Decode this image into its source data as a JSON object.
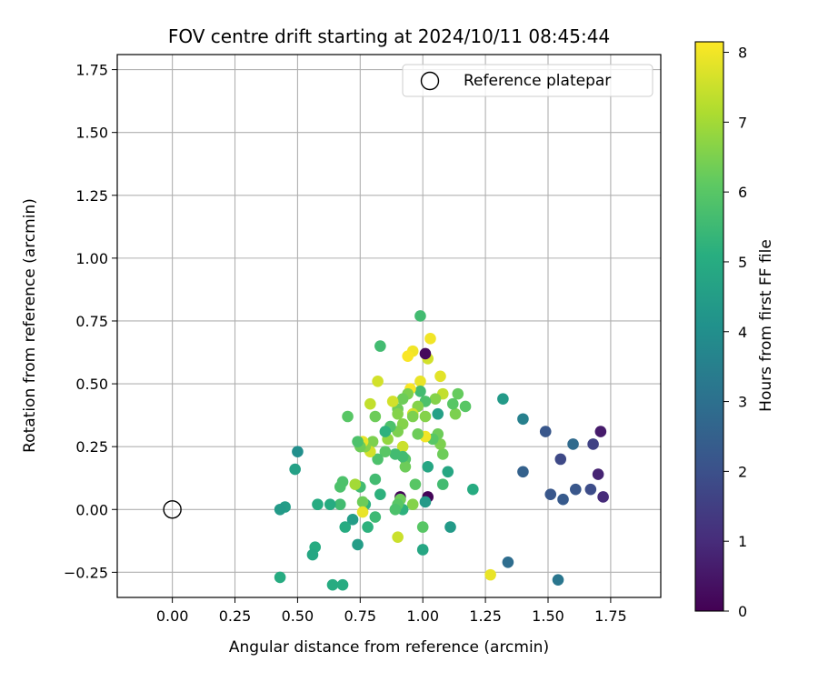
{
  "chart_data": {
    "type": "scatter",
    "title": "FOV centre drift starting at 2024/10/11 08:45:44",
    "xlabel": "Angular distance from reference (arcmin)",
    "ylabel": "Rotation from reference (arcmin)",
    "xlim": [
      -0.22,
      1.95
    ],
    "ylim": [
      -0.35,
      1.81
    ],
    "xticks": [
      "0.00",
      "0.25",
      "0.50",
      "0.75",
      "1.00",
      "1.25",
      "1.50",
      "1.75"
    ],
    "yticks": [
      "−0.25",
      "0.00",
      "0.25",
      "0.50",
      "0.75",
      "1.00",
      "1.25",
      "1.50",
      "1.75"
    ],
    "grid": true,
    "legend": {
      "position": "top-right",
      "entries": [
        "Reference platepar"
      ]
    },
    "colormap": "viridis",
    "colorbar": {
      "label": "Hours from first FF file",
      "range": [
        0,
        8.15
      ],
      "ticks": [
        "0",
        "1",
        "2",
        "3",
        "4",
        "5",
        "6",
        "7",
        "8"
      ]
    },
    "reference_point": {
      "x": 0.0,
      "y": 0.0
    },
    "series": [
      {
        "points": [
          {
            "x": 1.71,
            "y": 0.31,
            "c": 0.6
          },
          {
            "x": 1.72,
            "y": 0.05,
            "c": 1.0
          },
          {
            "x": 1.7,
            "y": 0.14,
            "c": 0.8
          },
          {
            "x": 1.68,
            "y": 0.26,
            "c": 1.6
          },
          {
            "x": 1.67,
            "y": 0.08,
            "c": 1.9
          },
          {
            "x": 1.61,
            "y": 0.08,
            "c": 2.2
          },
          {
            "x": 1.6,
            "y": 0.26,
            "c": 2.8
          },
          {
            "x": 1.56,
            "y": 0.04,
            "c": 2.3
          },
          {
            "x": 1.55,
            "y": 0.2,
            "c": 1.8
          },
          {
            "x": 1.54,
            "y": -0.28,
            "c": 3.2
          },
          {
            "x": 1.51,
            "y": 0.06,
            "c": 2.2
          },
          {
            "x": 1.49,
            "y": 0.31,
            "c": 2.2
          },
          {
            "x": 1.4,
            "y": 0.36,
            "c": 3.5
          },
          {
            "x": 1.4,
            "y": 0.15,
            "c": 2.5
          },
          {
            "x": 1.34,
            "y": -0.21,
            "c": 2.9
          },
          {
            "x": 1.32,
            "y": 0.44,
            "c": 4.4
          },
          {
            "x": 1.27,
            "y": -0.26,
            "c": 7.9
          },
          {
            "x": 1.2,
            "y": 0.08,
            "c": 5.0
          },
          {
            "x": 1.17,
            "y": 0.41,
            "c": 6.0
          },
          {
            "x": 1.14,
            "y": 0.46,
            "c": 6.2
          },
          {
            "x": 1.13,
            "y": 0.38,
            "c": 6.5
          },
          {
            "x": 1.12,
            "y": 0.42,
            "c": 6.0
          },
          {
            "x": 1.11,
            "y": -0.07,
            "c": 4.4
          },
          {
            "x": 1.1,
            "y": 0.15,
            "c": 4.8
          },
          {
            "x": 1.08,
            "y": 0.46,
            "c": 7.4
          },
          {
            "x": 1.08,
            "y": 0.22,
            "c": 6.3
          },
          {
            "x": 1.08,
            "y": 0.1,
            "c": 5.6
          },
          {
            "x": 1.07,
            "y": 0.53,
            "c": 7.8
          },
          {
            "x": 1.07,
            "y": 0.26,
            "c": 6.5
          },
          {
            "x": 1.06,
            "y": 0.38,
            "c": 4.6
          },
          {
            "x": 1.06,
            "y": 0.3,
            "c": 6.3
          },
          {
            "x": 1.05,
            "y": 0.44,
            "c": 6.6
          },
          {
            "x": 1.04,
            "y": 0.28,
            "c": 6.0
          },
          {
            "x": 1.03,
            "y": 0.68,
            "c": 8.0
          },
          {
            "x": 1.02,
            "y": 0.6,
            "c": 7.6
          },
          {
            "x": 1.02,
            "y": 0.17,
            "c": 4.8
          },
          {
            "x": 1.02,
            "y": 0.05,
            "c": 0.1
          },
          {
            "x": 1.01,
            "y": 0.62,
            "c": 0.2
          },
          {
            "x": 1.01,
            "y": 0.43,
            "c": 5.8
          },
          {
            "x": 1.01,
            "y": 0.37,
            "c": 6.6
          },
          {
            "x": 1.01,
            "y": 0.29,
            "c": 8.0
          },
          {
            "x": 1.01,
            "y": 0.03,
            "c": 4.4
          },
          {
            "x": 1.0,
            "y": -0.16,
            "c": 4.8
          },
          {
            "x": 1.0,
            "y": -0.07,
            "c": 6.0
          },
          {
            "x": 0.99,
            "y": 0.77,
            "c": 5.6
          },
          {
            "x": 0.99,
            "y": 0.51,
            "c": 7.9
          },
          {
            "x": 0.99,
            "y": 0.47,
            "c": 5.6
          },
          {
            "x": 0.98,
            "y": 0.41,
            "c": 6.6
          },
          {
            "x": 0.98,
            "y": 0.3,
            "c": 6.3
          },
          {
            "x": 0.97,
            "y": 0.1,
            "c": 6.0
          },
          {
            "x": 0.96,
            "y": 0.63,
            "c": 8.0
          },
          {
            "x": 0.96,
            "y": 0.38,
            "c": 7.6
          },
          {
            "x": 0.96,
            "y": 0.37,
            "c": 6.5
          },
          {
            "x": 0.96,
            "y": 0.02,
            "c": 6.6
          },
          {
            "x": 0.95,
            "y": 0.48,
            "c": 8.1
          },
          {
            "x": 0.94,
            "y": 0.61,
            "c": 8.1
          },
          {
            "x": 0.94,
            "y": 0.46,
            "c": 6.5
          },
          {
            "x": 0.93,
            "y": 0.2,
            "c": 6.0
          },
          {
            "x": 0.93,
            "y": 0.17,
            "c": 6.3
          },
          {
            "x": 0.92,
            "y": 0.44,
            "c": 6.3
          },
          {
            "x": 0.92,
            "y": 0.34,
            "c": 6.6
          },
          {
            "x": 0.92,
            "y": 0.25,
            "c": 7.5
          },
          {
            "x": 0.92,
            "y": 0.21,
            "c": 5.6
          },
          {
            "x": 0.92,
            "y": 0.0,
            "c": 5.2
          },
          {
            "x": 0.91,
            "y": 0.05,
            "c": 0.1
          },
          {
            "x": 0.91,
            "y": 0.04,
            "c": 6.3
          },
          {
            "x": 0.9,
            "y": 0.4,
            "c": 6.3
          },
          {
            "x": 0.9,
            "y": 0.38,
            "c": 6.6
          },
          {
            "x": 0.9,
            "y": 0.31,
            "c": 6.5
          },
          {
            "x": 0.9,
            "y": 0.02,
            "c": 6.0
          },
          {
            "x": 0.9,
            "y": -0.11,
            "c": 7.5
          },
          {
            "x": 0.89,
            "y": 0.22,
            "c": 5.6
          },
          {
            "x": 0.89,
            "y": 0.0,
            "c": 5.8
          },
          {
            "x": 0.88,
            "y": 0.43,
            "c": 7.6
          },
          {
            "x": 0.87,
            "y": 0.33,
            "c": 5.8
          },
          {
            "x": 0.86,
            "y": 0.28,
            "c": 6.8
          },
          {
            "x": 0.85,
            "y": 0.31,
            "c": 5.2
          },
          {
            "x": 0.85,
            "y": 0.23,
            "c": 6.0
          },
          {
            "x": 0.83,
            "y": 0.65,
            "c": 5.6
          },
          {
            "x": 0.83,
            "y": 0.06,
            "c": 5.2
          },
          {
            "x": 0.82,
            "y": 0.51,
            "c": 7.6
          },
          {
            "x": 0.82,
            "y": 0.2,
            "c": 5.8
          },
          {
            "x": 0.81,
            "y": 0.37,
            "c": 6.3
          },
          {
            "x": 0.81,
            "y": 0.12,
            "c": 5.6
          },
          {
            "x": 0.81,
            "y": -0.03,
            "c": 5.5
          },
          {
            "x": 0.8,
            "y": 0.27,
            "c": 6.5
          },
          {
            "x": 0.79,
            "y": 0.42,
            "c": 7.4
          },
          {
            "x": 0.79,
            "y": 0.23,
            "c": 7.6
          },
          {
            "x": 0.78,
            "y": -0.07,
            "c": 5.2
          },
          {
            "x": 0.77,
            "y": 0.25,
            "c": 6.6
          },
          {
            "x": 0.77,
            "y": 0.02,
            "c": 5.2
          },
          {
            "x": 0.76,
            "y": 0.27,
            "c": 7.9
          },
          {
            "x": 0.76,
            "y": 0.03,
            "c": 6.3
          },
          {
            "x": 0.76,
            "y": -0.01,
            "c": 7.9
          },
          {
            "x": 0.75,
            "y": 0.25,
            "c": 6.3
          },
          {
            "x": 0.75,
            "y": 0.09,
            "c": 5.6
          },
          {
            "x": 0.74,
            "y": 0.27,
            "c": 5.8
          },
          {
            "x": 0.74,
            "y": -0.14,
            "c": 4.5
          },
          {
            "x": 0.73,
            "y": 0.1,
            "c": 7.0
          },
          {
            "x": 0.72,
            "y": -0.04,
            "c": 4.5
          },
          {
            "x": 0.7,
            "y": 0.37,
            "c": 6.0
          },
          {
            "x": 0.69,
            "y": -0.07,
            "c": 5.0
          },
          {
            "x": 0.68,
            "y": 0.11,
            "c": 5.8
          },
          {
            "x": 0.68,
            "y": -0.3,
            "c": 5.0
          },
          {
            "x": 0.67,
            "y": 0.09,
            "c": 5.8
          },
          {
            "x": 0.67,
            "y": 0.02,
            "c": 5.6
          },
          {
            "x": 0.64,
            "y": -0.3,
            "c": 5.0
          },
          {
            "x": 0.63,
            "y": 0.02,
            "c": 5.0
          },
          {
            "x": 0.58,
            "y": 0.02,
            "c": 5.0
          },
          {
            "x": 0.57,
            "y": -0.15,
            "c": 5.0
          },
          {
            "x": 0.56,
            "y": -0.18,
            "c": 4.8
          },
          {
            "x": 0.5,
            "y": 0.23,
            "c": 4.0
          },
          {
            "x": 0.49,
            "y": 0.16,
            "c": 4.6
          },
          {
            "x": 0.45,
            "y": 0.01,
            "c": 4.5
          },
          {
            "x": 0.43,
            "y": 0.0,
            "c": 4.4
          },
          {
            "x": 0.43,
            "y": -0.27,
            "c": 5.0
          }
        ]
      }
    ]
  }
}
